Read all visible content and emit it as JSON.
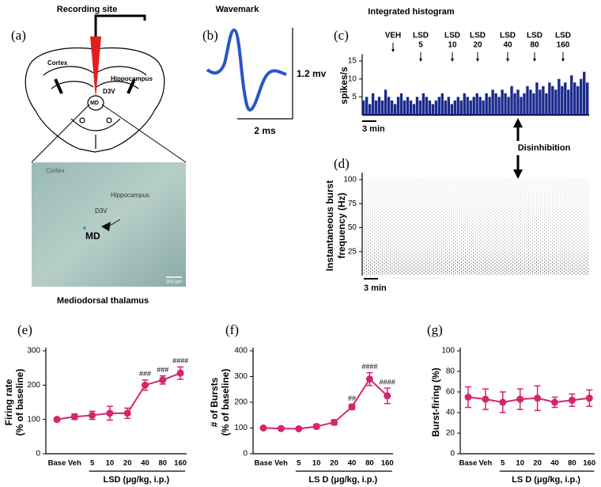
{
  "panels": {
    "a": {
      "label": "(a)",
      "title": "Recording site",
      "brain_labels": [
        "Cortex",
        "Hippocampus",
        "D3V",
        "MD"
      ],
      "histology_labels": [
        "Cortex",
        "Hippocampus",
        "D3V",
        "MD"
      ],
      "scale": "200 μm",
      "caption": "Mediodorsal thalamus"
    },
    "b": {
      "label": "(b)",
      "title": "Wavemark",
      "amplitude": "1.2 mv",
      "duration": "2 ms"
    },
    "note": "Disinhibition"
  },
  "chart_data": [
    {
      "type": "bar",
      "label": "(c)",
      "title": "Integrated histogram",
      "ylabel": [
        "spikes/s"
      ],
      "color": "#1a2a8c",
      "ylim": [
        0,
        16
      ],
      "yticks": [
        5,
        10,
        15
      ],
      "scale_bar": "3 min",
      "events": [
        [
          "VEH"
        ],
        [
          "LSD",
          "5"
        ],
        [
          "LSD",
          "10"
        ],
        [
          "LSD",
          "20"
        ],
        [
          "LSD",
          "40"
        ],
        [
          "LSD",
          "80"
        ],
        [
          "LSD",
          "160"
        ]
      ],
      "values": [
        4,
        5,
        3,
        6,
        4,
        5,
        4,
        7,
        5,
        4,
        3,
        5,
        6,
        4,
        5,
        4,
        3,
        5,
        4,
        6,
        5,
        4,
        3,
        4,
        5,
        6,
        4,
        5,
        3,
        4,
        5,
        4,
        6,
        5,
        4,
        5,
        6,
        5,
        4,
        6,
        5,
        7,
        6,
        5,
        7,
        6,
        5,
        8,
        6,
        7,
        5,
        6,
        8,
        7,
        6,
        9,
        7,
        8,
        6,
        9,
        8,
        7,
        10,
        8,
        9,
        7,
        11,
        9,
        8,
        10,
        12,
        9
      ]
    },
    {
      "type": "raster",
      "label": "(d)",
      "ylabel": [
        "Instantaneous burst",
        "frequency (Hz)"
      ],
      "ylim": [
        0,
        104
      ],
      "yticks": [
        25,
        50,
        75,
        100
      ],
      "scale_bar": "3 min"
    },
    {
      "type": "line",
      "label": "(e)",
      "ylabel": [
        "Firing rate",
        "(% of baseline)"
      ],
      "xlabel": "LSD (μg/kg, i.p.)",
      "color": "#d6246e",
      "categories": [
        "Base",
        "Veh",
        "5",
        "10",
        "20",
        "40",
        "80",
        "160"
      ],
      "values": [
        100,
        108,
        112,
        118,
        118,
        200,
        215,
        235
      ],
      "errors": [
        5,
        8,
        12,
        20,
        15,
        15,
        12,
        18
      ],
      "ylim": [
        0,
        300
      ],
      "yticks": [
        0,
        100,
        200,
        300
      ],
      "annotations": [
        {
          "x": "40",
          "text": "###"
        },
        {
          "x": "80",
          "text": "###"
        },
        {
          "x": "160",
          "text": "####"
        }
      ]
    },
    {
      "type": "line",
      "label": "(f)",
      "ylabel": [
        "# of Bursts",
        "(% of baseline)"
      ],
      "xlabel": "LS D (μg/kg, i.p.)",
      "color": "#d6246e",
      "categories": [
        "Base",
        "Veh",
        "5",
        "10",
        "20",
        "40",
        "80",
        "160"
      ],
      "values": [
        100,
        98,
        97,
        106,
        122,
        182,
        290,
        225
      ],
      "errors": [
        5,
        5,
        5,
        8,
        10,
        10,
        25,
        30
      ],
      "ylim": [
        0,
        400
      ],
      "yticks": [
        0,
        100,
        200,
        300,
        400
      ],
      "annotations": [
        {
          "x": "40",
          "text": "##"
        },
        {
          "x": "80",
          "text": "####"
        },
        {
          "x": "160",
          "text": "####"
        }
      ]
    },
    {
      "type": "line",
      "label": "(g)",
      "ylabel": [
        "Burst-firing (%)"
      ],
      "xlabel": "LS D (μg/kg, i.p.)",
      "color": "#d6246e",
      "categories": [
        "Base",
        "Veh",
        "5",
        "10",
        "20",
        "40",
        "80",
        "160"
      ],
      "values": [
        55,
        53,
        50,
        53,
        54,
        50,
        52,
        54
      ],
      "errors": [
        10,
        10,
        10,
        10,
        12,
        5,
        6,
        8
      ],
      "ylim": [
        0,
        100
      ],
      "yticks": [
        0,
        20,
        40,
        60,
        80,
        100
      ],
      "annotations": []
    }
  ]
}
